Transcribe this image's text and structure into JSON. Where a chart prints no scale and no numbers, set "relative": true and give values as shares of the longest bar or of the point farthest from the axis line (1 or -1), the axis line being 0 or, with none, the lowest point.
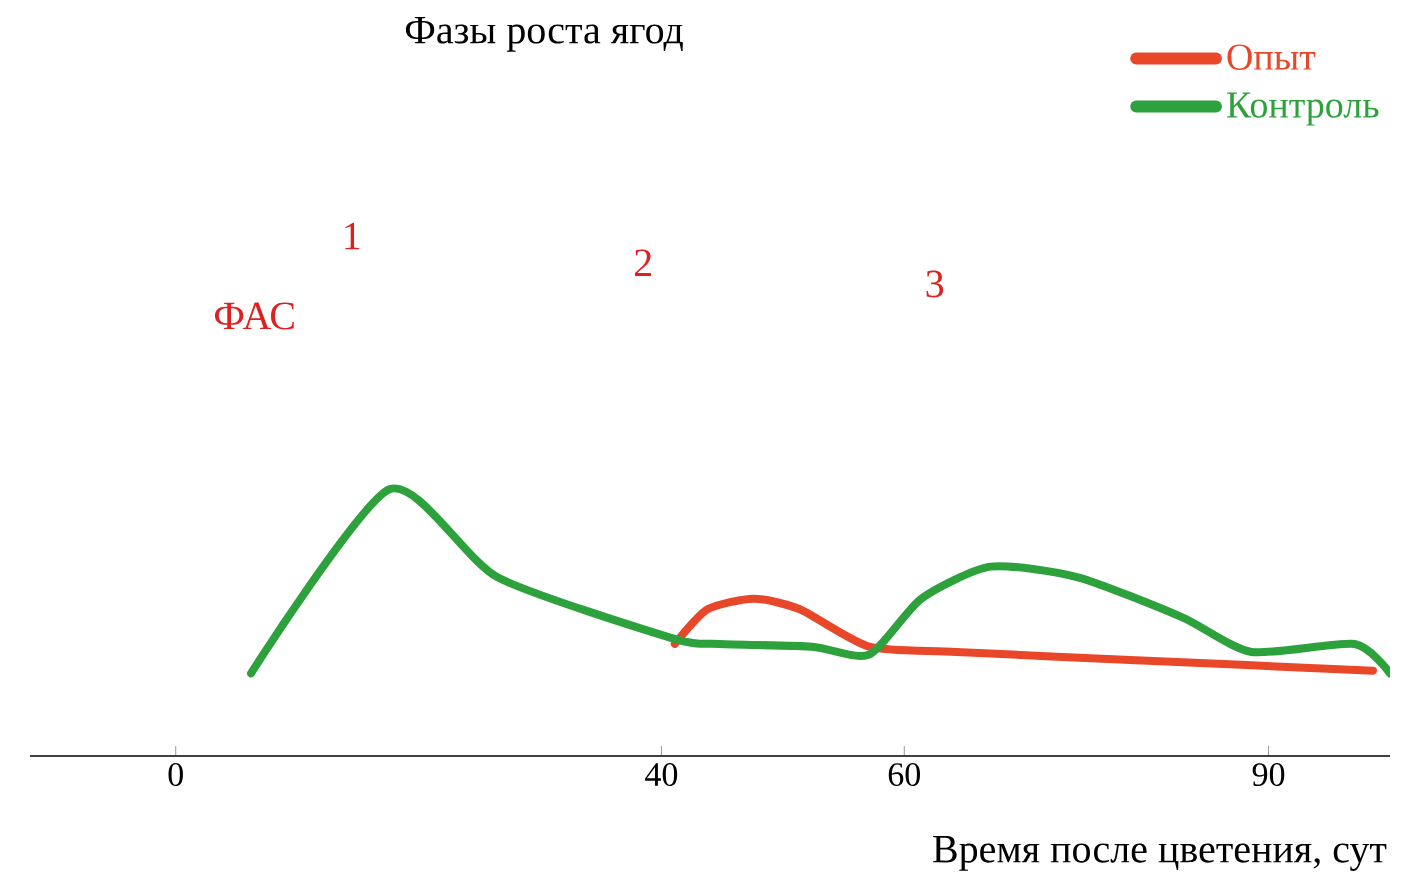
{
  "chart_data": {
    "type": "line",
    "title": "Фазы роста ягод",
    "xlabel": "Время после цветения, сут",
    "relative": true,
    "xlim": [
      -12,
      100
    ],
    "xticks": [
      0,
      40,
      60,
      90
    ],
    "legend": "top right",
    "grid": false,
    "marker": "none",
    "line_style": "solid",
    "annotations": [
      "1",
      "2",
      "3",
      "ФАС"
    ],
    "series": [
      {
        "name": "Опыт",
        "color": "#e8472a",
        "x": [
          41.1,
          43.8,
          47.6,
          51.4,
          57.1,
          64.3,
          78.6,
          98.6
        ],
        "values": [
          0.42,
          0.55,
          0.59,
          0.55,
          0.41,
          0.39,
          0.36,
          0.32
        ]
      },
      {
        "name": "Контроль",
        "color": "#2ca13c",
        "x": [
          6.2,
          17.6,
          26.5,
          41,
          44.8,
          52.4,
          57.1,
          61.4,
          67.1,
          74.3,
          82.9,
          88.6,
          97.1,
          100
        ],
        "values": [
          0.31,
          1,
          0.67,
          0.44,
          0.42,
          0.41,
          0.38,
          0.59,
          0.71,
          0.67,
          0.52,
          0.39,
          0.42,
          0.31
        ]
      }
    ]
  }
}
